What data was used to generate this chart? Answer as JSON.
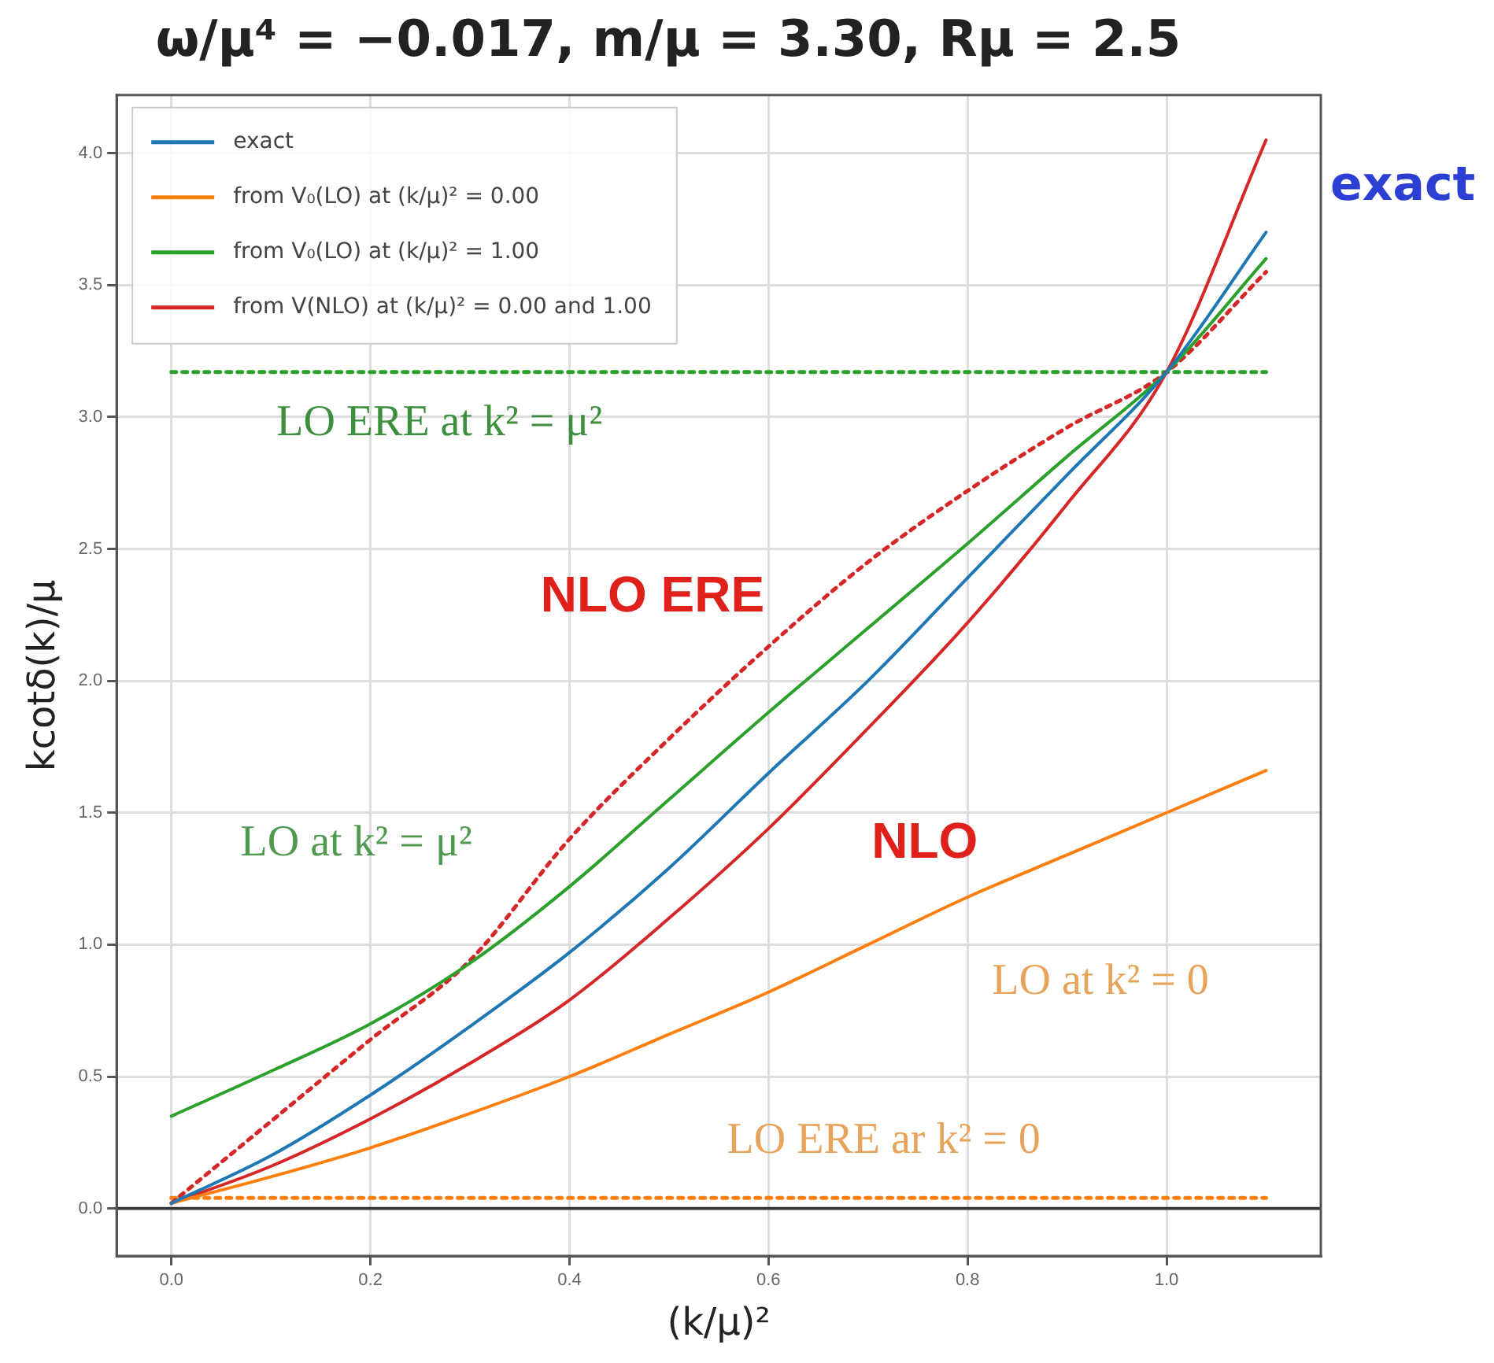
{
  "chart_data": {
    "type": "line",
    "title": "ω/μ⁴ = −0.017, m/μ = 3.30, Rμ = 2.5",
    "xlabel": "(k/μ)²",
    "ylabel": "kcotδ(k)/μ",
    "x": [
      0,
      0.1,
      0.2,
      0.3,
      0.4,
      0.5,
      0.6,
      0.7,
      0.8,
      0.9,
      1.0,
      1.1
    ],
    "series": [
      {
        "name": "exact",
        "color": "#1f77b4",
        "values": [
          0.02,
          0.2,
          0.43,
          0.69,
          0.97,
          1.29,
          1.65,
          2.0,
          2.39,
          2.78,
          3.17,
          3.7
        ]
      },
      {
        "name": "from V₀(LO) at (k/μ)² = 0.00",
        "color": "#ff7f0e",
        "values": [
          0.02,
          0.12,
          0.23,
          0.36,
          0.5,
          0.66,
          0.82,
          1.0,
          1.18,
          1.34,
          1.5,
          1.66
        ]
      },
      {
        "name": "from V₀(LO) at (k/μ)² = 1.00",
        "color": "#2ca02c",
        "values": [
          0.35,
          0.52,
          0.7,
          0.93,
          1.22,
          1.55,
          1.88,
          2.2,
          2.52,
          2.85,
          3.17,
          3.6
        ]
      },
      {
        "name": "from V(NLO) at (k/μ)² = 0.00 and 1.00",
        "color": "#d62728",
        "values": [
          0.02,
          0.16,
          0.34,
          0.55,
          0.79,
          1.1,
          1.44,
          1.82,
          2.22,
          2.67,
          3.17,
          4.05
        ]
      },
      {
        "color": "#d62728",
        "line_style": "dotted",
        "values": [
          0.02,
          0.33,
          0.64,
          0.94,
          1.4,
          1.78,
          2.13,
          2.45,
          2.72,
          2.96,
          3.17,
          3.55
        ]
      },
      {
        "color": "#2ca02c",
        "line_style": "dotted",
        "values": [
          3.17,
          3.17,
          3.17,
          3.17,
          3.17,
          3.17,
          3.17,
          3.17,
          3.17,
          3.17,
          3.17,
          3.17
        ]
      },
      {
        "color": "#ff7f0e",
        "line_style": "dotted",
        "values": [
          0.04,
          0.04,
          0.04,
          0.04,
          0.04,
          0.04,
          0.04,
          0.04,
          0.04,
          0.04,
          0.04,
          0.04
        ]
      }
    ],
    "xlim": [
      -0.055,
      1.155
    ],
    "xticks": [
      {
        "value": 0,
        "label": "0.0"
      },
      {
        "value": 0.2,
        "label": "0.2"
      },
      {
        "value": 0.4,
        "label": "0.4"
      },
      {
        "value": 0.6,
        "label": "0.6"
      },
      {
        "value": 0.8,
        "label": "0.8"
      },
      {
        "value": 1.0,
        "label": "1.0"
      }
    ],
    "ylim": [
      -0.18,
      4.22
    ],
    "yticks": [
      {
        "value": 0,
        "label": "0.0"
      },
      {
        "value": 0.5,
        "label": "0.5"
      },
      {
        "value": 1.0,
        "label": "1.0"
      },
      {
        "value": 1.5,
        "label": "1.5"
      },
      {
        "value": 2.0,
        "label": "2.0"
      },
      {
        "value": 2.5,
        "label": "2.5"
      },
      {
        "value": 3.0,
        "label": "3.0"
      },
      {
        "value": 3.5,
        "label": "3.5"
      },
      {
        "value": 4.0,
        "label": "4.0"
      }
    ],
    "ref_lines": [
      {
        "axis": "y",
        "value": 0,
        "color": "#333333"
      }
    ],
    "annotations": [
      "exact",
      "LO ERE at k² = μ²",
      "NLO ERE",
      "LO at k² = μ²",
      "NLO",
      "LO at k² = 0",
      "LO ERE ar k² = 0"
    ],
    "grid": true,
    "legend": "top left",
    "line_style": "solid",
    "marker": "none"
  }
}
